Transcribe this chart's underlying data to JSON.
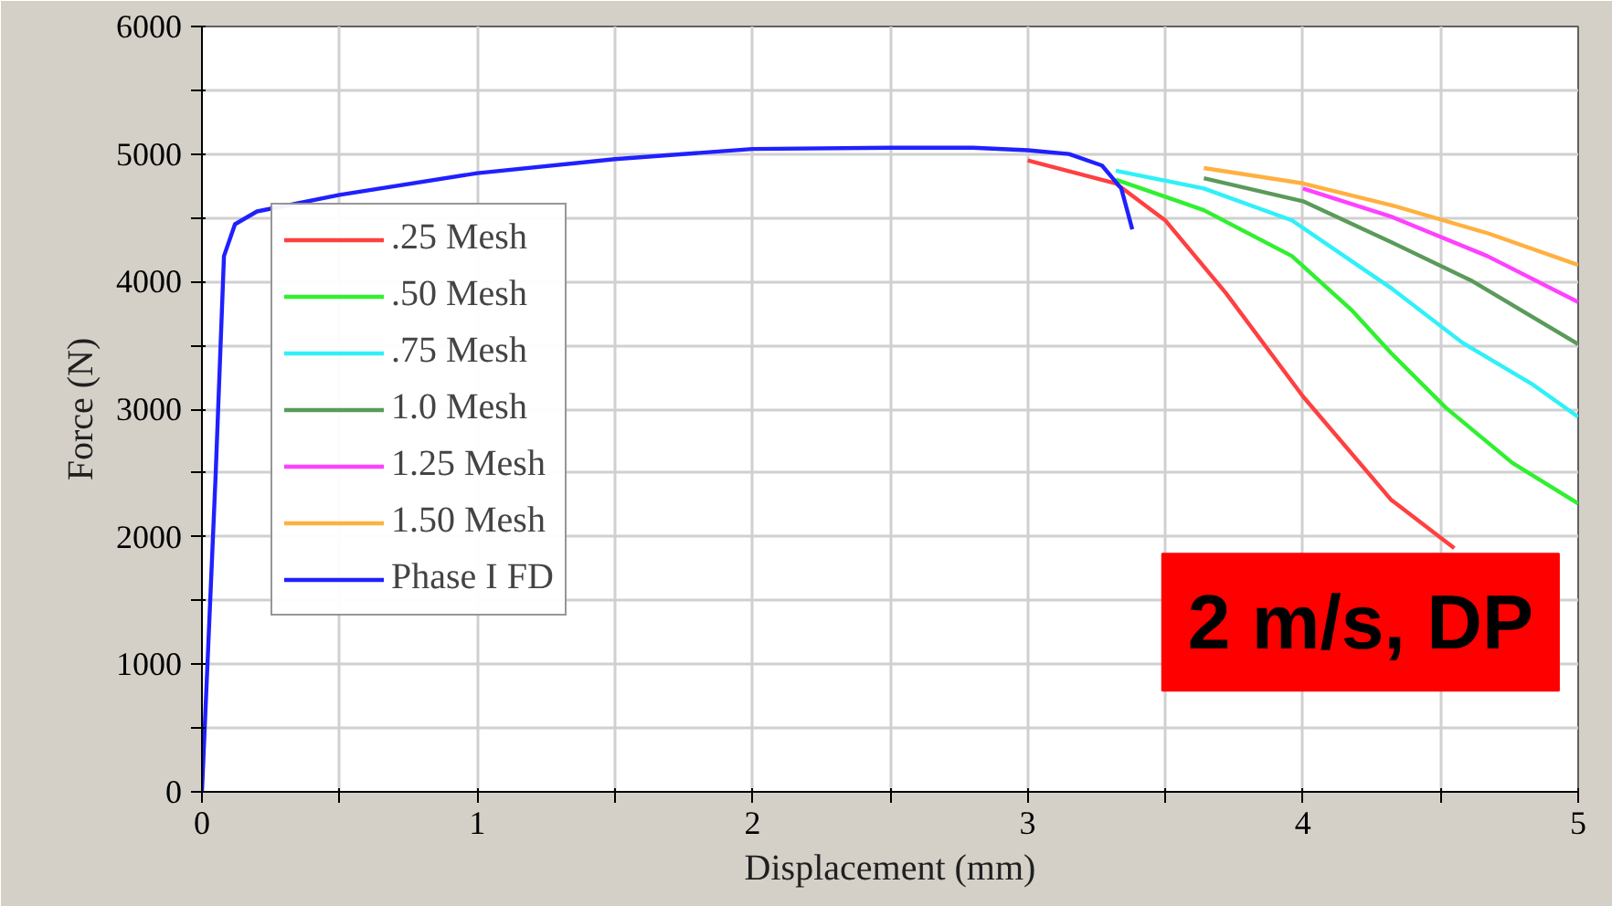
{
  "chart_data": {
    "type": "line",
    "xlabel": "Displacement (mm)",
    "ylabel": "Force (N)",
    "xlim": [
      0,
      5
    ],
    "ylim": [
      0,
      6000
    ],
    "xticks": [
      0,
      {
        "value": 0.5,
        "label": null
      },
      1,
      {
        "value": 1.5,
        "label": null
      },
      2,
      {
        "value": 2.5,
        "label": null
      },
      3,
      {
        "value": 3.5,
        "label": null
      },
      4,
      {
        "value": 4.5,
        "label": null
      },
      5
    ],
    "yticks": [
      0,
      {
        "value": 500,
        "label": null
      },
      1000,
      {
        "value": 1500,
        "label": null
      },
      2000,
      {
        "value": 2500,
        "label": null
      },
      3000,
      {
        "value": 3500,
        "label": null
      },
      4000,
      {
        "value": 4500,
        "label": null
      },
      5000,
      {
        "value": 5500,
        "label": null
      },
      6000
    ],
    "grid": true,
    "legend": "left",
    "line_style": "solid",
    "annotations": [
      "2 m/s, DP"
    ],
    "series": [
      {
        "name": ".25 Mesh",
        "color": "#ff4040",
        "x": [
          3.0,
          3.32,
          3.5,
          3.72,
          4.0,
          4.32,
          4.55
        ],
        "values": [
          4950,
          4770,
          4480,
          3910,
          3100,
          2290,
          1910
        ]
      },
      {
        "name": ".50 Mesh",
        "color": "#30f030",
        "x": [
          3.32,
          3.64,
          3.96,
          4.18,
          4.32,
          4.52,
          4.76,
          5.0
        ],
        "values": [
          4800,
          4560,
          4200,
          3770,
          3440,
          3010,
          2580,
          2260
        ]
      },
      {
        "name": ".75 Mesh",
        "color": "#30f0f8",
        "x": [
          3.32,
          3.64,
          3.96,
          4.32,
          4.58,
          4.83,
          5.0
        ],
        "values": [
          4870,
          4730,
          4480,
          3950,
          3520,
          3200,
          2940
        ]
      },
      {
        "name": "1.0 Mesh",
        "color": "#5a9a5a",
        "x": [
          3.64,
          4.0,
          4.32,
          4.61,
          5.0
        ],
        "values": [
          4810,
          4630,
          4310,
          4010,
          3510
        ]
      },
      {
        "name": "1.25 Mesh",
        "color": "#ff40ff",
        "x": [
          4.0,
          4.32,
          4.67,
          5.0
        ],
        "values": [
          4730,
          4510,
          4200,
          3840
        ]
      },
      {
        "name": "1.50 Mesh",
        "color": "#ffb040",
        "x": [
          3.64,
          4.0,
          4.32,
          4.67,
          5.0
        ],
        "values": [
          4890,
          4770,
          4600,
          4380,
          4130
        ]
      },
      {
        "name": "Phase I FD",
        "color": "#2020ff",
        "x": [
          0,
          0.05,
          0.08,
          0.12,
          0.2,
          0.5,
          1,
          1.5,
          2,
          2.5,
          2.8,
          3.0,
          3.15,
          3.27,
          3.34,
          3.38
        ],
        "values": [
          0,
          2500,
          4200,
          4450,
          4550,
          4680,
          4850,
          4960,
          5040,
          5050,
          5050,
          5030,
          5000,
          4910,
          4730,
          4410
        ]
      }
    ]
  }
}
